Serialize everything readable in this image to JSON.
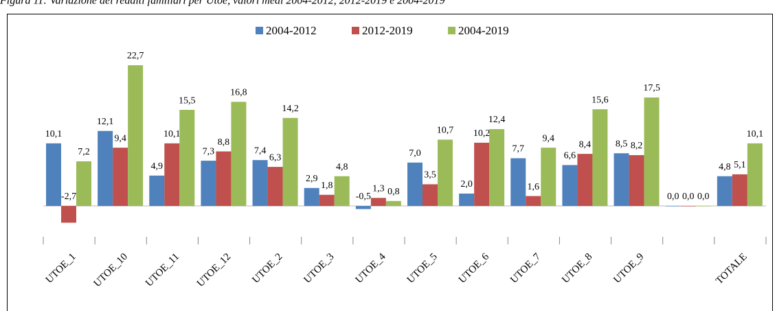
{
  "chart_data": {
    "type": "bar",
    "title": "Figura 11: Variazione dei redditi familiari per Utoe, valori medi 2004-2012, 2012-2019 e 2004-2019",
    "categories": [
      "UTOE_1",
      "UTOE_10",
      "UTOE_11",
      "UTOE_12",
      "UTOE_2",
      "UTOE_3",
      "UTOE_4",
      "UTOE_5",
      "UTOE_6",
      "UTOE_7",
      "UTOE_8",
      "UTOE_9",
      null,
      "TOTALE"
    ],
    "series": [
      {
        "name": "2004-2012",
        "color": "#4f81bd",
        "values": [
          10.1,
          12.1,
          4.9,
          7.3,
          7.4,
          2.9,
          -0.5,
          7.0,
          2.0,
          7.7,
          6.6,
          8.5,
          0.0,
          4.8
        ],
        "value_labels": [
          "10,1",
          "12,1",
          "4,9",
          "7,3",
          "7,4",
          "2,9",
          "-0,5",
          "7,0",
          "2,0",
          "7,7",
          "6,6",
          "8,5",
          "0,0",
          "4,8"
        ]
      },
      {
        "name": "2012-2019",
        "color": "#c0504d",
        "values": [
          -2.7,
          9.4,
          10.1,
          8.8,
          6.3,
          1.8,
          1.3,
          3.5,
          10.2,
          1.6,
          8.4,
          8.2,
          0.0,
          5.1
        ],
        "value_labels": [
          "-2,7",
          "9,4",
          "10,1",
          "8,8",
          "6,3",
          "1,8",
          "1,3",
          "3,5",
          "10,2",
          "1,6",
          "8,4",
          "8,2",
          "0,0",
          "5,1"
        ]
      },
      {
        "name": "2004-2019",
        "color": "#9bbb59",
        "values": [
          7.2,
          22.7,
          15.5,
          16.8,
          14.2,
          4.8,
          0.8,
          10.7,
          12.4,
          9.4,
          15.6,
          17.5,
          0.0,
          10.1
        ],
        "value_labels": [
          "7,2",
          "22,7",
          "15,5",
          "16,8",
          "14,2",
          "4,8",
          "0,8",
          "10,7",
          "12,4",
          "9,4",
          "15,6",
          "17,5",
          "0,0",
          "10,1"
        ]
      }
    ],
    "legend": "top"
  }
}
